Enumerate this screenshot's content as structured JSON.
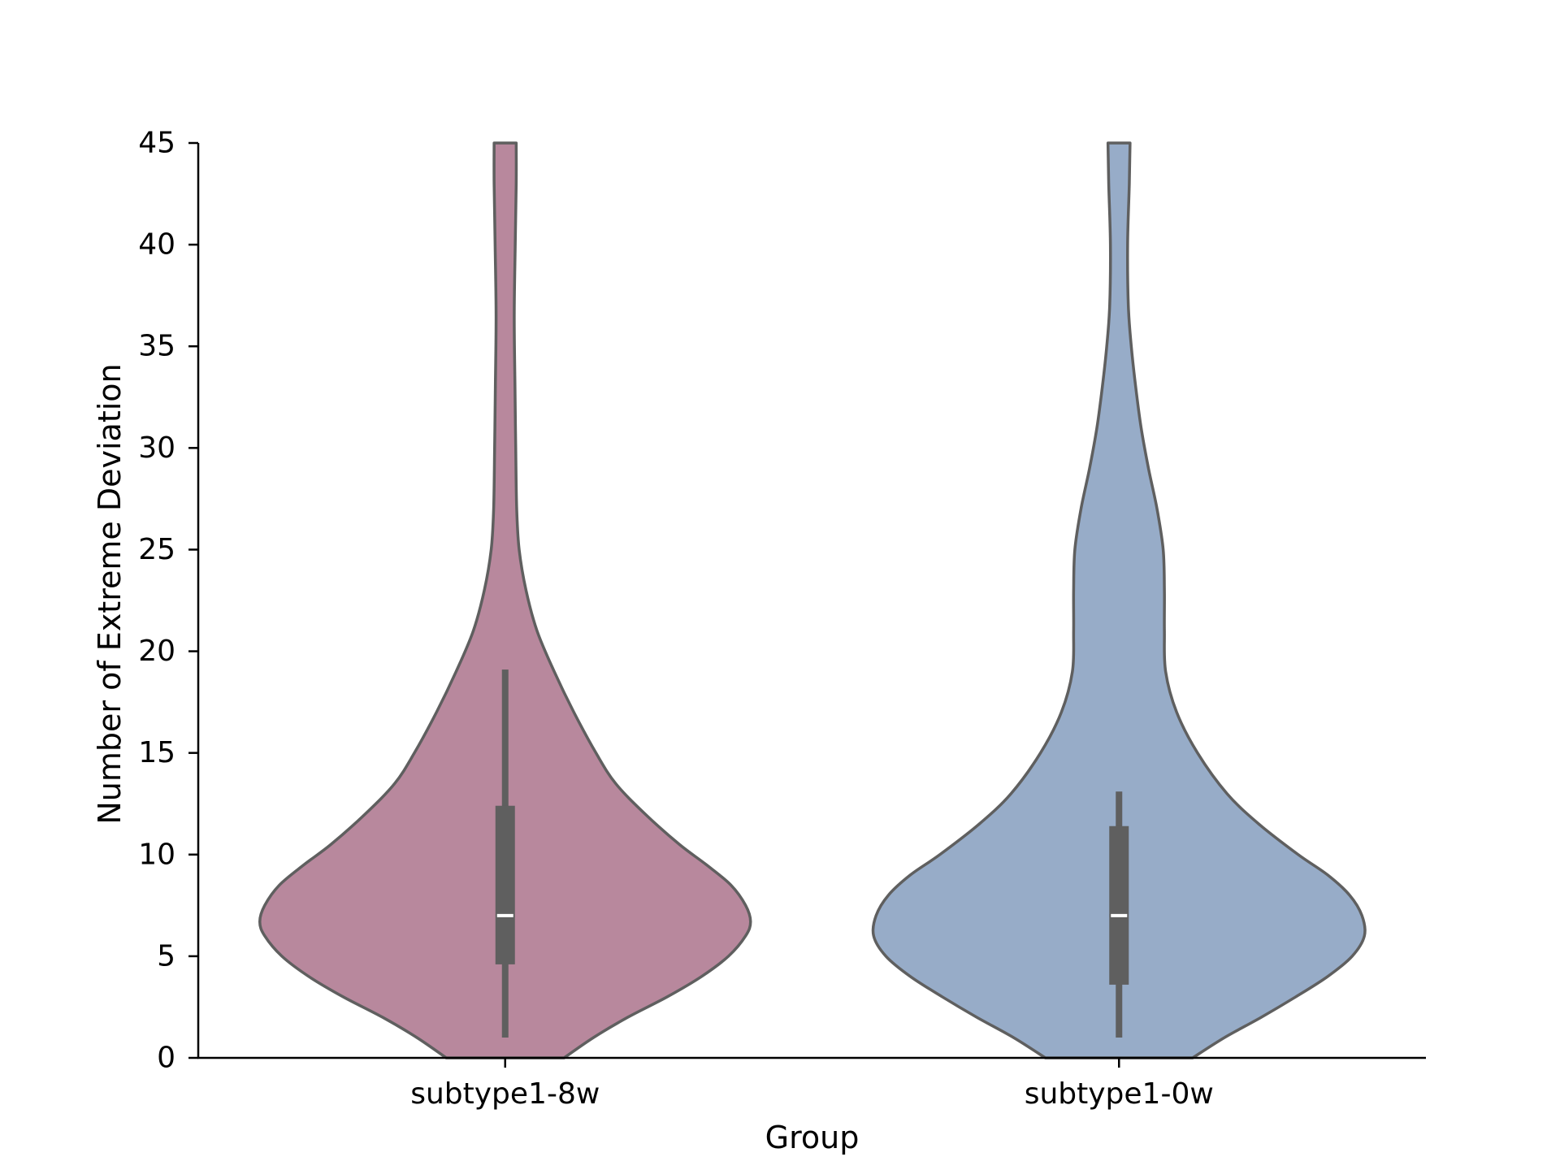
{
  "chart_data": {
    "type": "violin",
    "title": "",
    "xlabel": "Group",
    "ylabel": "Number of Extreme Deviation",
    "categories": [
      "subtype1-8w",
      "subtype1-0w"
    ],
    "ylim": [
      0,
      45
    ],
    "yticks": [
      0,
      5,
      10,
      15,
      20,
      25,
      30,
      35,
      40,
      45
    ],
    "grid": false,
    "series": [
      {
        "category": "subtype1-8w",
        "color": "#b8889d",
        "density_profile": [
          {
            "y": 0,
            "w": 0.24
          },
          {
            "y": 1,
            "w": 0.36
          },
          {
            "y": 2,
            "w": 0.5
          },
          {
            "y": 3,
            "w": 0.66
          },
          {
            "y": 4,
            "w": 0.8
          },
          {
            "y": 5,
            "w": 0.91
          },
          {
            "y": 6,
            "w": 0.98
          },
          {
            "y": 6.7,
            "w": 1.0
          },
          {
            "y": 7.5,
            "w": 0.98
          },
          {
            "y": 8.5,
            "w": 0.92
          },
          {
            "y": 9.5,
            "w": 0.82
          },
          {
            "y": 10.5,
            "w": 0.71
          },
          {
            "y": 12,
            "w": 0.57
          },
          {
            "y": 13.5,
            "w": 0.45
          },
          {
            "y": 15,
            "w": 0.37
          },
          {
            "y": 17,
            "w": 0.28
          },
          {
            "y": 19,
            "w": 0.2
          },
          {
            "y": 21,
            "w": 0.13
          },
          {
            "y": 23,
            "w": 0.085
          },
          {
            "y": 25,
            "w": 0.057
          },
          {
            "y": 27,
            "w": 0.047
          },
          {
            "y": 30,
            "w": 0.043
          },
          {
            "y": 33,
            "w": 0.04
          },
          {
            "y": 36.5,
            "w": 0.037
          },
          {
            "y": 40,
            "w": 0.041
          },
          {
            "y": 43,
            "w": 0.045
          },
          {
            "y": 45,
            "w": 0.045
          }
        ],
        "box": {
          "whisker_low": 1,
          "q1": 4.6,
          "median": 7,
          "q3": 12.4,
          "whisker_high": 19.1
        }
      },
      {
        "category": "subtype1-0w",
        "color": "#97acc8",
        "density_profile": [
          {
            "y": 0,
            "w": 0.3
          },
          {
            "y": 1,
            "w": 0.43
          },
          {
            "y": 2,
            "w": 0.58
          },
          {
            "y": 3,
            "w": 0.72
          },
          {
            "y": 4,
            "w": 0.85
          },
          {
            "y": 5,
            "w": 0.95
          },
          {
            "y": 6,
            "w": 1.0
          },
          {
            "y": 7,
            "w": 0.99
          },
          {
            "y": 8,
            "w": 0.94
          },
          {
            "y": 9,
            "w": 0.85
          },
          {
            "y": 10,
            "w": 0.73
          },
          {
            "y": 11.5,
            "w": 0.57
          },
          {
            "y": 13,
            "w": 0.44
          },
          {
            "y": 15,
            "w": 0.32
          },
          {
            "y": 17,
            "w": 0.235
          },
          {
            "y": 19,
            "w": 0.19
          },
          {
            "y": 21,
            "w": 0.185
          },
          {
            "y": 23,
            "w": 0.185
          },
          {
            "y": 25,
            "w": 0.18
          },
          {
            "y": 27,
            "w": 0.155
          },
          {
            "y": 29,
            "w": 0.12
          },
          {
            "y": 31,
            "w": 0.09
          },
          {
            "y": 33,
            "w": 0.068
          },
          {
            "y": 35,
            "w": 0.05
          },
          {
            "y": 37,
            "w": 0.038
          },
          {
            "y": 40,
            "w": 0.035
          },
          {
            "y": 43,
            "w": 0.042
          },
          {
            "y": 45,
            "w": 0.045
          }
        ],
        "box": {
          "whisker_low": 1,
          "q1": 3.6,
          "median": 7,
          "q3": 11.4,
          "whisker_high": 13.1
        }
      }
    ],
    "style": {
      "outline_color": "#5f5f5f",
      "box_color": "#5f5f5f",
      "median_color": "#ffffff",
      "axis_color": "#000000"
    }
  }
}
